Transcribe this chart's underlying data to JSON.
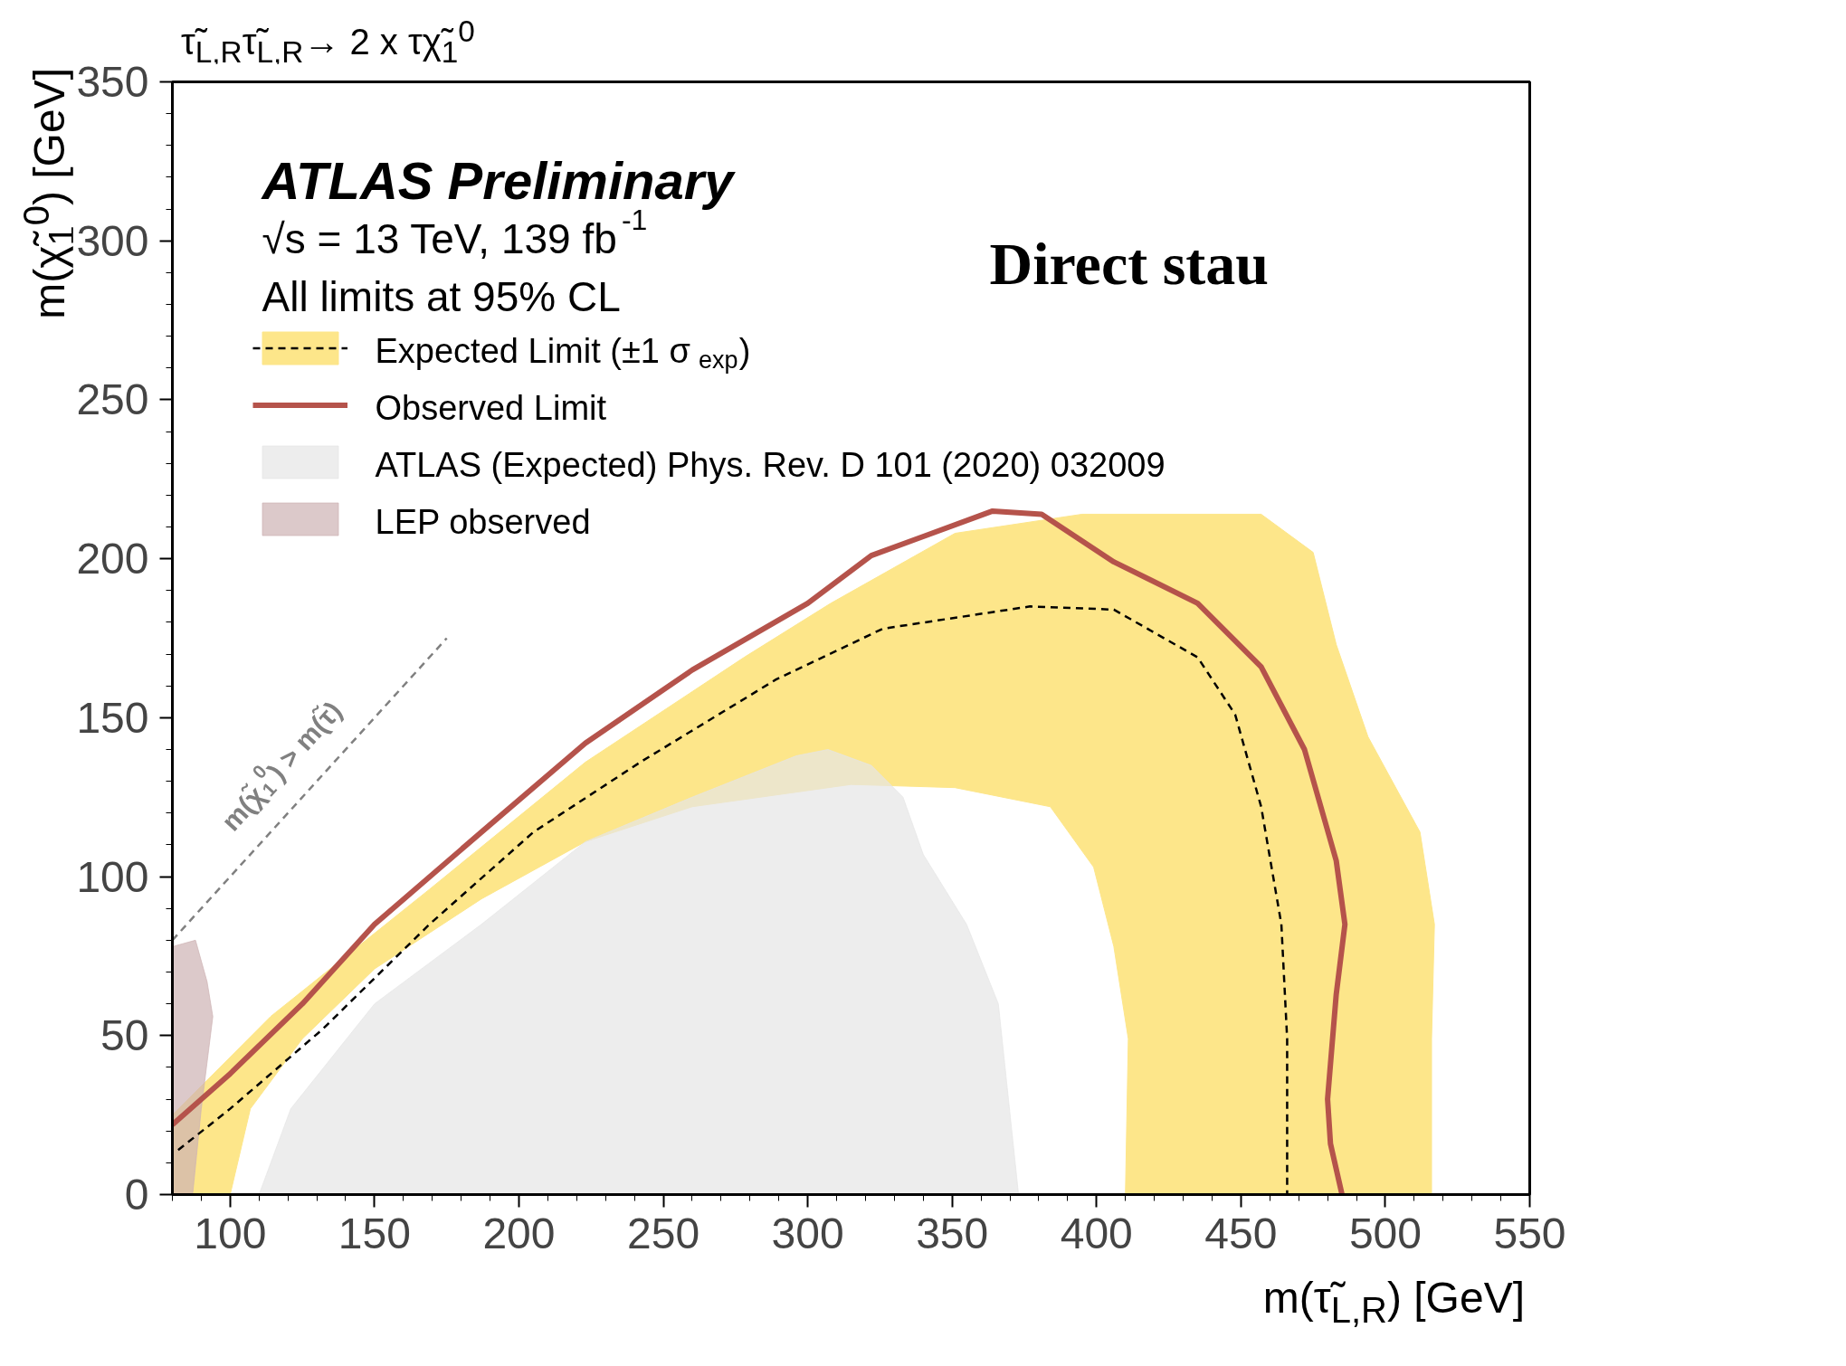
{
  "chart_data": {
    "type": "line",
    "title": "τ̃$_{L,R}$τ̃$_{L,R}$→ 2 x τχ̃$_{1}$$^{0}$",
    "xlabel": "m(τ̃$_{L,R}$) [GeV]",
    "ylabel": "m(χ̃$_{1}$$^{0}$) [GeV]",
    "xlim": [
      80,
      550
    ],
    "ylim": [
      0,
      350
    ],
    "xticks": [
      100,
      150,
      200,
      250,
      300,
      350,
      400,
      450,
      500,
      550
    ],
    "yticks": [
      0,
      50,
      100,
      150,
      200,
      250,
      300,
      350
    ],
    "grid": false,
    "legend": "top left",
    "series": [
      {
        "type": "area",
        "color": "#fde68a",
        "x": [
          80,
          114,
          169,
          223,
          278,
          308,
          351,
          395,
          457,
          475,
          483,
          494,
          512,
          517,
          516,
          516,
          410,
          411,
          406,
          399,
          384,
          351,
          315,
          260,
          223,
          187,
          150,
          125,
          107,
          100,
          80
        ],
        "values": [
          25,
          56,
          96,
          136,
          169,
          186,
          208,
          214,
          214,
          202,
          173,
          144,
          114,
          85,
          49,
          0,
          0,
          49,
          78,
          103,
          122,
          128,
          129,
          122,
          111,
          93,
          71,
          49,
          27,
          0,
          0
        ]
      },
      {
        "name": "Expected Limit (±1 σ$_{exp}$)",
        "line_style": "dashed",
        "color": "#000000",
        "x": [
          82,
          100,
          132,
          169,
          205,
          242,
          289,
          326,
          377,
          406,
          435,
          448,
          457,
          464,
          466,
          466
        ],
        "values": [
          14,
          27,
          52,
          85,
          114,
          136,
          162,
          178,
          185,
          184,
          169,
          151,
          122,
          85,
          49,
          0
        ]
      },
      {
        "name": "Observed Limit",
        "line_style": "solid",
        "color": "#b5534b",
        "x": [
          80,
          100,
          125,
          150,
          187,
          223,
          260,
          300,
          322,
          364,
          381,
          406,
          435,
          457,
          472,
          483,
          486,
          483,
          480,
          481,
          485
        ],
        "values": [
          22,
          38,
          60,
          85,
          114,
          142,
          165,
          186,
          201,
          215,
          214,
          199,
          186,
          166,
          140,
          105,
          85,
          63,
          30,
          16,
          0
        ]
      },
      {
        "name": "ATLAS (Expected) Phys. Rev. D 101 (2020) 032009",
        "type": "area",
        "color": "#e6e6e6",
        "x": [
          110,
          121,
          150,
          187,
          223,
          260,
          296,
          307,
          322,
          333,
          340,
          355,
          366,
          373
        ],
        "values": [
          0,
          27,
          60,
          85,
          111,
          125,
          138,
          140,
          135,
          125,
          107,
          85,
          60,
          0
        ]
      },
      {
        "name": "LEP observed",
        "type": "area",
        "color": "#cdb2b4",
        "x": [
          80,
          88,
          92,
          94,
          90,
          87,
          80
        ],
        "values": [
          78,
          80,
          67,
          56,
          27,
          0,
          0
        ]
      },
      {
        "line_style": "dashed",
        "color": "#808080",
        "x": [
          80,
          175
        ],
        "values": [
          80,
          175
        ]
      }
    ],
    "annotations": [
      "ATLAS Preliminary",
      "√s = 13 TeV, 139 fb$^{-1}$",
      "All limits at 95% CL",
      "Direct stau",
      "m(χ̃$_{1}$$^{0}$) > m(τ̃)"
    ]
  }
}
